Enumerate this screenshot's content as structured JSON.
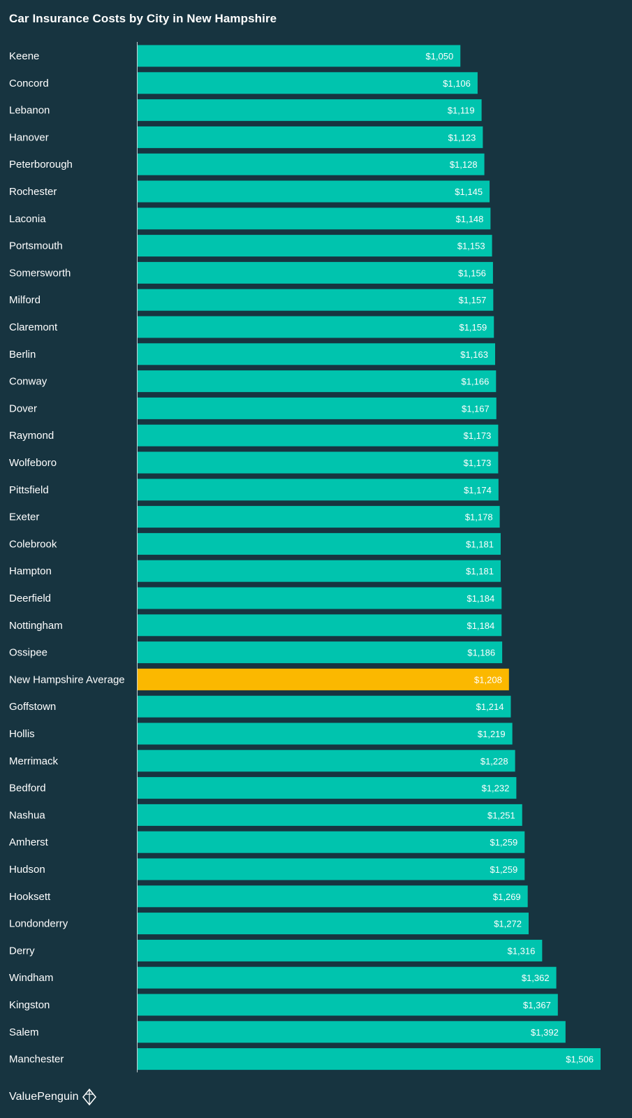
{
  "title": "Car Insurance Costs by City in New Hampshire",
  "brand": {
    "name": "ValuePenguin",
    "icon": "valuepenguin-logo-icon"
  },
  "colors": {
    "background": "#173440",
    "bar": "#00c4ae",
    "highlight": "#fbb800",
    "text": "#ffffff",
    "axis": "#c8d0d4"
  },
  "chart_data": {
    "type": "bar",
    "orientation": "horizontal",
    "title": "Car Insurance Costs by City in New Hampshire",
    "grid": false,
    "legend": "none",
    "xlim": [
      0,
      1506
    ],
    "value_prefix": "$",
    "highlight_category": "New Hampshire Average",
    "categories": [
      "Keene",
      "Concord",
      "Lebanon",
      "Hanover",
      "Peterborough",
      "Rochester",
      "Laconia",
      "Portsmouth",
      "Somersworth",
      "Milford",
      "Claremont",
      "Berlin",
      "Conway",
      "Dover",
      "Raymond",
      "Wolfeboro",
      "Pittsfield",
      "Exeter",
      "Colebrook",
      "Hampton",
      "Deerfield",
      "Nottingham",
      "Ossipee",
      "New Hampshire Average",
      "Goffstown",
      "Hollis",
      "Merrimack",
      "Bedford",
      "Nashua",
      "Amherst",
      "Hudson",
      "Hooksett",
      "Londonderry",
      "Derry",
      "Windham",
      "Kingston",
      "Salem",
      "Manchester"
    ],
    "values": [
      1050,
      1106,
      1119,
      1123,
      1128,
      1145,
      1148,
      1153,
      1156,
      1157,
      1159,
      1163,
      1166,
      1167,
      1173,
      1173,
      1174,
      1178,
      1181,
      1181,
      1184,
      1184,
      1186,
      1208,
      1214,
      1219,
      1228,
      1232,
      1251,
      1259,
      1259,
      1269,
      1272,
      1316,
      1362,
      1367,
      1392,
      1506
    ],
    "data_labels": [
      "$1,050",
      "$1,106",
      "$1,119",
      "$1,123",
      "$1,128",
      "$1,145",
      "$1,148",
      "$1,153",
      "$1,156",
      "$1,157",
      "$1,159",
      "$1,163",
      "$1,166",
      "$1,167",
      "$1,173",
      "$1,173",
      "$1,174",
      "$1,178",
      "$1,181",
      "$1,181",
      "$1,184",
      "$1,184",
      "$1,186",
      "$1,208",
      "$1,214",
      "$1,219",
      "$1,228",
      "$1,232",
      "$1,251",
      "$1,259",
      "$1,259",
      "$1,269",
      "$1,272",
      "$1,316",
      "$1,362",
      "$1,367",
      "$1,392",
      "$1,506"
    ]
  }
}
